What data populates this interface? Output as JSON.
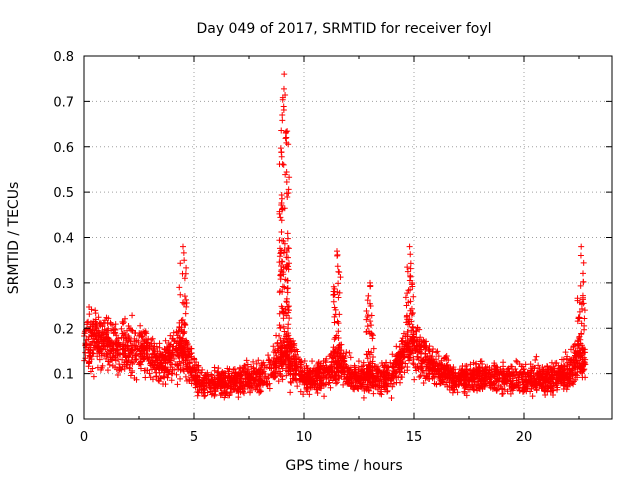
{
  "chart_data": {
    "type": "scatter",
    "title": "Day 049 of 2017, SRMTID for receiver foyl",
    "xlabel": "GPS time / hours",
    "ylabel": "SRMTID / TECUs",
    "xlim": [
      0,
      24
    ],
    "ylim": [
      0,
      0.8
    ],
    "xticks": [
      0,
      5,
      10,
      15,
      20
    ],
    "xtick_labels": [
      "0",
      "5",
      "10",
      "15",
      "20"
    ],
    "yticks": [
      0,
      0.1,
      0.2,
      0.3,
      0.4,
      0.5,
      0.6,
      0.7,
      0.8
    ],
    "ytick_labels": [
      "0",
      "0.1",
      "0.2",
      "0.3",
      "0.4",
      "0.5",
      "0.6",
      "0.7",
      "0.8"
    ],
    "grid": true,
    "marker": "+",
    "color": "#ff0000",
    "series_profile": [
      {
        "x": 0.0,
        "y": 0.17
      },
      {
        "x": 0.5,
        "y": 0.18
      },
      {
        "x": 1.0,
        "y": 0.17
      },
      {
        "x": 1.5,
        "y": 0.16
      },
      {
        "x": 2.0,
        "y": 0.15
      },
      {
        "x": 2.5,
        "y": 0.16
      },
      {
        "x": 3.0,
        "y": 0.14
      },
      {
        "x": 3.5,
        "y": 0.12
      },
      {
        "x": 4.0,
        "y": 0.14
      },
      {
        "x": 4.5,
        "y": 0.15
      },
      {
        "x": 5.0,
        "y": 0.1
      },
      {
        "x": 5.5,
        "y": 0.08
      },
      {
        "x": 6.0,
        "y": 0.08
      },
      {
        "x": 6.5,
        "y": 0.08
      },
      {
        "x": 7.0,
        "y": 0.085
      },
      {
        "x": 7.5,
        "y": 0.09
      },
      {
        "x": 8.0,
        "y": 0.09
      },
      {
        "x": 8.5,
        "y": 0.11
      },
      {
        "x": 9.0,
        "y": 0.14
      },
      {
        "x": 9.5,
        "y": 0.13
      },
      {
        "x": 10.0,
        "y": 0.09
      },
      {
        "x": 10.5,
        "y": 0.09
      },
      {
        "x": 11.0,
        "y": 0.1
      },
      {
        "x": 11.5,
        "y": 0.12
      },
      {
        "x": 12.0,
        "y": 0.1
      },
      {
        "x": 12.5,
        "y": 0.09
      },
      {
        "x": 13.0,
        "y": 0.09
      },
      {
        "x": 13.5,
        "y": 0.09
      },
      {
        "x": 14.0,
        "y": 0.1
      },
      {
        "x": 14.5,
        "y": 0.14
      },
      {
        "x": 15.0,
        "y": 0.17
      },
      {
        "x": 15.5,
        "y": 0.13
      },
      {
        "x": 16.0,
        "y": 0.11
      },
      {
        "x": 16.5,
        "y": 0.1
      },
      {
        "x": 17.0,
        "y": 0.09
      },
      {
        "x": 17.5,
        "y": 0.09
      },
      {
        "x": 18.0,
        "y": 0.1
      },
      {
        "x": 18.5,
        "y": 0.09
      },
      {
        "x": 19.0,
        "y": 0.09
      },
      {
        "x": 19.5,
        "y": 0.085
      },
      {
        "x": 20.0,
        "y": 0.09
      },
      {
        "x": 20.5,
        "y": 0.09
      },
      {
        "x": 21.0,
        "y": 0.09
      },
      {
        "x": 21.5,
        "y": 0.09
      },
      {
        "x": 22.0,
        "y": 0.1
      },
      {
        "x": 22.5,
        "y": 0.14
      },
      {
        "x": 22.8,
        "y": 0.12
      }
    ],
    "peaks": [
      {
        "x": 4.5,
        "y": 0.38
      },
      {
        "x": 9.1,
        "y": 0.76
      },
      {
        "x": 11.5,
        "y": 0.37
      },
      {
        "x": 13.0,
        "y": 0.3
      },
      {
        "x": 14.8,
        "y": 0.38
      },
      {
        "x": 22.6,
        "y": 0.38
      }
    ],
    "x_extent": [
      0,
      22.8
    ]
  }
}
